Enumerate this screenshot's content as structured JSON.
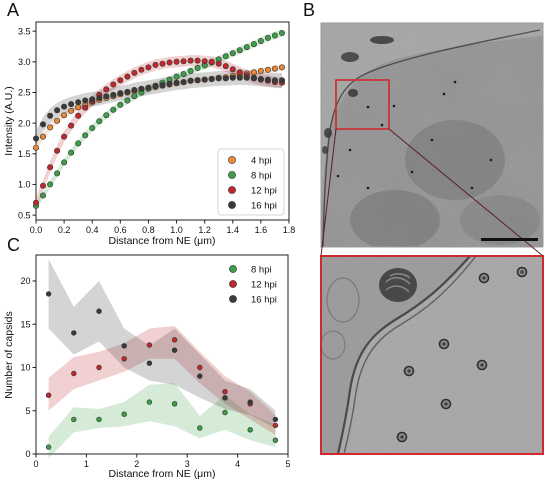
{
  "panels": {
    "a_letter": "A",
    "b_letter": "B",
    "c_letter": "C"
  },
  "chart_data": [
    {
      "panel": "A",
      "type": "scatter",
      "xlabel": "Distance from NE (μm)",
      "ylabel": "Intensity (A.U.)",
      "xlim": [
        0,
        1.8
      ],
      "ylim": [
        0.42,
        3.65
      ],
      "xticks": [
        "0.0",
        "0.2",
        "0.4",
        "0.6",
        "0.8",
        "1.0",
        "1.2",
        "1.4",
        "1.6",
        "1.8"
      ],
      "yticks": [
        "0.5",
        "1.0",
        "1.5",
        "2.0",
        "2.5",
        "3.0",
        "3.5"
      ],
      "legend_position": "lower-right",
      "band_halfwidth": [
        0.05,
        0.06,
        0.09,
        0.12
      ],
      "series": [
        {
          "name": "4 hpi",
          "color": "#E8893A",
          "x": [
            0.0,
            0.05,
            0.1,
            0.15,
            0.2,
            0.25,
            0.3,
            0.35,
            0.4,
            0.45,
            0.5,
            0.55,
            0.6,
            0.65,
            0.7,
            0.75,
            0.8,
            0.85,
            0.9,
            0.95,
            1.0,
            1.05,
            1.1,
            1.15,
            1.2,
            1.25,
            1.3,
            1.35,
            1.4,
            1.45,
            1.5,
            1.55,
            1.6,
            1.65,
            1.7,
            1.75
          ],
          "values": [
            1.6,
            1.78,
            1.93,
            2.04,
            2.13,
            2.2,
            2.26,
            2.3,
            2.34,
            2.38,
            2.41,
            2.44,
            2.47,
            2.5,
            2.52,
            2.55,
            2.57,
            2.59,
            2.61,
            2.63,
            2.65,
            2.67,
            2.69,
            2.7,
            2.71,
            2.72,
            2.74,
            2.75,
            2.77,
            2.79,
            2.81,
            2.83,
            2.85,
            2.87,
            2.89,
            2.91
          ]
        },
        {
          "name": "8 hpi",
          "color": "#3E9E4A",
          "x": [
            0.0,
            0.05,
            0.1,
            0.15,
            0.2,
            0.25,
            0.3,
            0.35,
            0.4,
            0.45,
            0.5,
            0.55,
            0.6,
            0.65,
            0.7,
            0.75,
            0.8,
            0.85,
            0.9,
            0.95,
            1.0,
            1.05,
            1.1,
            1.15,
            1.2,
            1.25,
            1.3,
            1.35,
            1.4,
            1.45,
            1.5,
            1.55,
            1.6,
            1.65,
            1.7,
            1.75
          ],
          "values": [
            0.65,
            0.82,
            1.0,
            1.18,
            1.36,
            1.52,
            1.67,
            1.8,
            1.92,
            2.03,
            2.13,
            2.22,
            2.3,
            2.37,
            2.44,
            2.5,
            2.56,
            2.61,
            2.66,
            2.71,
            2.76,
            2.8,
            2.85,
            2.9,
            2.94,
            2.99,
            3.04,
            3.09,
            3.14,
            3.19,
            3.24,
            3.29,
            3.34,
            3.39,
            3.43,
            3.47
          ]
        },
        {
          "name": "12 hpi",
          "color": "#C0282E",
          "x": [
            0.0,
            0.05,
            0.1,
            0.15,
            0.2,
            0.25,
            0.3,
            0.35,
            0.4,
            0.45,
            0.5,
            0.55,
            0.6,
            0.65,
            0.7,
            0.75,
            0.8,
            0.85,
            0.9,
            0.95,
            1.0,
            1.05,
            1.1,
            1.15,
            1.2,
            1.25,
            1.3,
            1.35,
            1.4,
            1.45,
            1.5,
            1.55,
            1.6,
            1.65,
            1.7,
            1.75
          ],
          "values": [
            0.7,
            0.98,
            1.28,
            1.55,
            1.78,
            1.96,
            2.12,
            2.25,
            2.36,
            2.46,
            2.55,
            2.63,
            2.7,
            2.76,
            2.82,
            2.87,
            2.91,
            2.95,
            2.97,
            2.99,
            3.0,
            3.01,
            3.02,
            3.02,
            3.01,
            3.0,
            2.97,
            2.93,
            2.88,
            2.83,
            2.78,
            2.74,
            2.71,
            2.69,
            2.67,
            2.66
          ]
        },
        {
          "name": "16 hpi",
          "color": "#3A3A3A",
          "x": [
            0.0,
            0.05,
            0.1,
            0.15,
            0.2,
            0.25,
            0.3,
            0.35,
            0.4,
            0.45,
            0.5,
            0.55,
            0.6,
            0.65,
            0.7,
            0.75,
            0.8,
            0.85,
            0.9,
            0.95,
            1.0,
            1.05,
            1.1,
            1.15,
            1.2,
            1.25,
            1.3,
            1.35,
            1.4,
            1.45,
            1.5,
            1.55,
            1.6,
            1.65,
            1.7,
            1.75
          ],
          "values": [
            1.75,
            1.98,
            2.12,
            2.21,
            2.27,
            2.31,
            2.34,
            2.37,
            2.39,
            2.41,
            2.44,
            2.46,
            2.49,
            2.51,
            2.54,
            2.56,
            2.58,
            2.6,
            2.62,
            2.64,
            2.66,
            2.67,
            2.69,
            2.7,
            2.71,
            2.72,
            2.73,
            2.73,
            2.74,
            2.74,
            2.74,
            2.73,
            2.72,
            2.71,
            2.7,
            2.7
          ]
        }
      ]
    },
    {
      "panel": "C",
      "type": "scatter",
      "xlabel": "Distance from NE (μm)",
      "ylabel": "Number of capsids",
      "xlim": [
        0,
        5
      ],
      "ylim": [
        0,
        23
      ],
      "xticks": [
        "0",
        "1",
        "2",
        "3",
        "4",
        "5"
      ],
      "yticks": [
        "0",
        "5",
        "10",
        "15",
        "20"
      ],
      "legend_position": "top-right",
      "series": [
        {
          "name": "8 hpi",
          "color": "#3E9E4A",
          "x": [
            0.25,
            0.75,
            1.25,
            1.75,
            2.25,
            2.75,
            3.25,
            3.75,
            4.25,
            4.75
          ],
          "values": [
            0.8,
            4.0,
            4.0,
            4.6,
            6.0,
            5.8,
            3.0,
            4.8,
            2.8,
            1.6
          ],
          "lower": [
            -0.5,
            2.5,
            3.0,
            3.2,
            3.8,
            3.2,
            1.8,
            2.8,
            1.6,
            0.8
          ],
          "upper": [
            2.0,
            5.4,
            5.2,
            6.0,
            8.0,
            8.2,
            4.4,
            6.8,
            4.6,
            3.4
          ]
        },
        {
          "name": "12 hpi",
          "color": "#C0282E",
          "x": [
            0.25,
            0.75,
            1.25,
            1.75,
            2.25,
            2.75,
            3.25,
            3.75,
            4.25,
            4.75
          ],
          "values": [
            6.8,
            9.3,
            10.0,
            11.0,
            12.6,
            13.2,
            10.0,
            7.2,
            5.8,
            3.3
          ],
          "lower": [
            5.0,
            7.5,
            8.5,
            9.5,
            11.0,
            11.0,
            8.2,
            5.8,
            4.0,
            2.2
          ],
          "upper": [
            8.8,
            11.2,
            11.8,
            12.8,
            14.5,
            14.8,
            11.8,
            9.0,
            7.2,
            4.5
          ]
        },
        {
          "name": "16 hpi",
          "color": "#3A3A3A",
          "x": [
            0.25,
            0.75,
            1.25,
            1.75,
            2.25,
            2.75,
            3.25,
            3.75,
            4.25,
            4.75
          ],
          "values": [
            18.5,
            14.0,
            16.5,
            12.5,
            10.5,
            12.0,
            9.0,
            6.5,
            6.0,
            4.0
          ],
          "lower": [
            14.5,
            11.5,
            13.0,
            10.0,
            8.5,
            8.0,
            6.5,
            5.2,
            4.5,
            3.0
          ],
          "upper": [
            22.5,
            17.0,
            20.0,
            14.5,
            12.5,
            14.5,
            11.5,
            8.5,
            7.5,
            5.0
          ]
        }
      ]
    }
  ],
  "micrograph": {
    "top_border_color": "#9A9A9A",
    "zoom_box_color": "#CC2A2E",
    "scale_bar_color": "#111111",
    "capsids_top": [
      [
        368,
        107
      ],
      [
        455,
        82
      ],
      [
        350,
        150
      ],
      [
        338,
        176
      ],
      [
        412,
        172
      ],
      [
        368,
        188
      ],
      [
        394,
        106
      ],
      [
        432,
        140
      ],
      [
        472,
        188
      ],
      [
        444,
        94
      ],
      [
        382,
        125
      ],
      [
        491,
        160
      ]
    ],
    "capsids_inset": [
      [
        444,
        344
      ],
      [
        446,
        404
      ],
      [
        402,
        437
      ],
      [
        409,
        371
      ],
      [
        484,
        278
      ],
      [
        522,
        272
      ],
      [
        482,
        365
      ]
    ]
  }
}
